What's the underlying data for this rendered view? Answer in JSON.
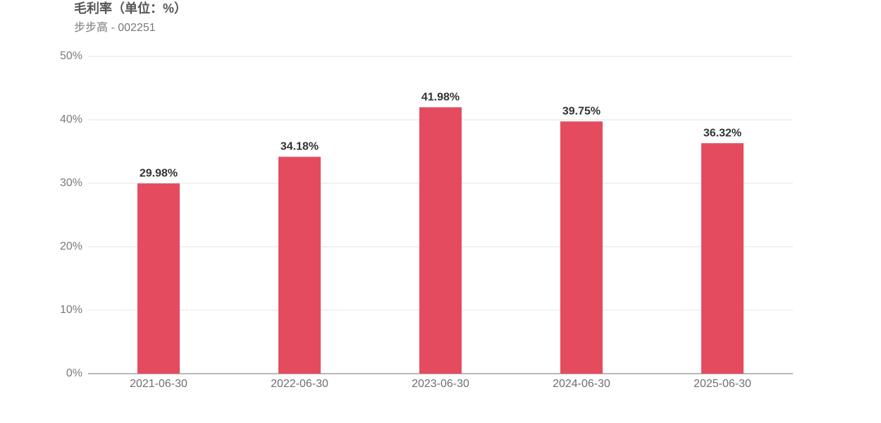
{
  "chart_data": {
    "type": "bar",
    "title": "毛利率（单位：%）",
    "subtitle": "步步高 - 002251",
    "categories": [
      "2021-06-30",
      "2022-06-30",
      "2023-06-30",
      "2024-06-30",
      "2025-06-30"
    ],
    "values": [
      29.98,
      34.18,
      41.98,
      39.75,
      36.32
    ],
    "value_labels": [
      "29.98%",
      "34.18%",
      "41.98%",
      "39.75%",
      "36.32%"
    ],
    "color": "#e54b5e",
    "ylim": [
      0,
      50
    ],
    "yticks": [
      {
        "value": 0,
        "label": "0%"
      },
      {
        "value": 10,
        "label": "10%"
      },
      {
        "value": 20,
        "label": "20%"
      },
      {
        "value": 30,
        "label": "30%"
      },
      {
        "value": 40,
        "label": "40%"
      },
      {
        "value": 50,
        "label": "50%"
      }
    ],
    "grid": true
  }
}
